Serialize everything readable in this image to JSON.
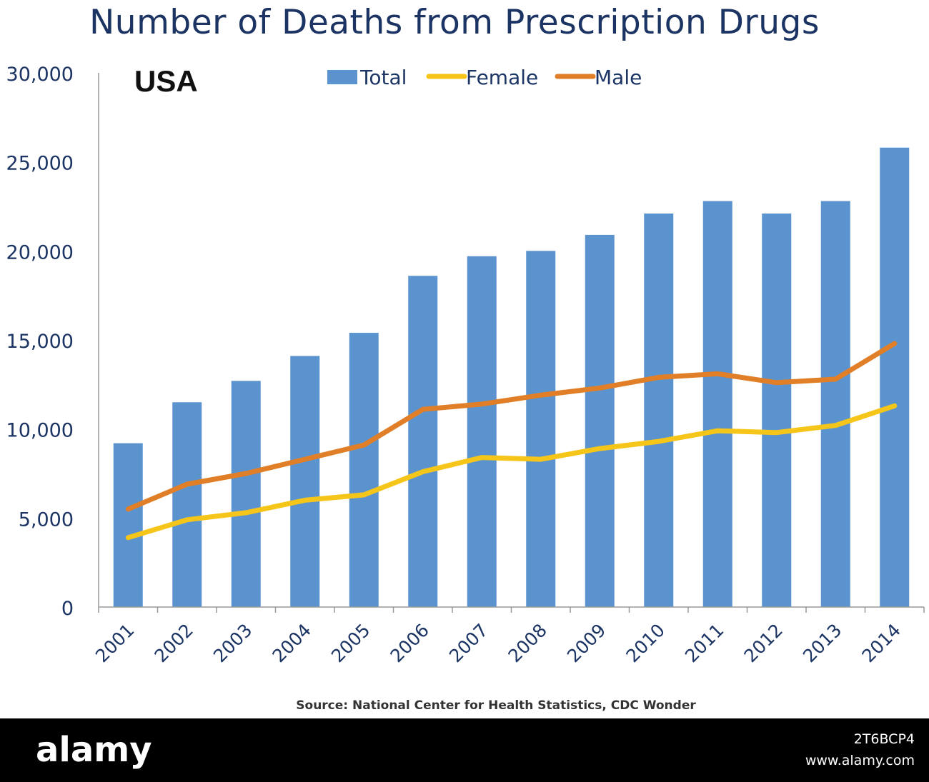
{
  "chart_data": {
    "type": "bar",
    "title": "Number of Deaths from Prescription Drugs",
    "subtitle": "USA",
    "source": "Source: National Center for Health Statistics, CDC Wonder",
    "categories": [
      "2001",
      "2002",
      "2003",
      "2004",
      "2005",
      "2006",
      "2007",
      "2008",
      "2009",
      "2010",
      "2011",
      "2012",
      "2013",
      "2014"
    ],
    "series": [
      {
        "name": "Total",
        "type": "bar",
        "color": "#5b93cf",
        "values": [
          9200,
          11500,
          12700,
          14100,
          15400,
          18600,
          19700,
          20000,
          20900,
          22100,
          22800,
          22100,
          22800,
          25800
        ]
      },
      {
        "name": "Female",
        "type": "line",
        "color": "#f6c51a",
        "values": [
          3900,
          4900,
          5300,
          6000,
          6300,
          7600,
          8400,
          8300,
          8900,
          9300,
          9900,
          9800,
          10200,
          11300
        ]
      },
      {
        "name": "Male",
        "type": "line",
        "color": "#e07f27",
        "values": [
          5500,
          6900,
          7500,
          8300,
          9100,
          11100,
          11400,
          11900,
          12300,
          12900,
          13100,
          12600,
          12800,
          14800
        ]
      }
    ],
    "ylim": [
      0,
      30000
    ],
    "yticks": [
      0,
      5000,
      10000,
      15000,
      20000,
      25000,
      30000
    ],
    "ytick_labels": [
      "0",
      "5,000",
      "10,000",
      "15,000",
      "20,000",
      "25,000",
      "30,000"
    ],
    "legend_position": "top",
    "grid": false,
    "xlabel": "",
    "ylabel": ""
  },
  "footer": {
    "brand": "alamy",
    "image_id": "2T6BCP4",
    "url": "www.alamy.com"
  }
}
